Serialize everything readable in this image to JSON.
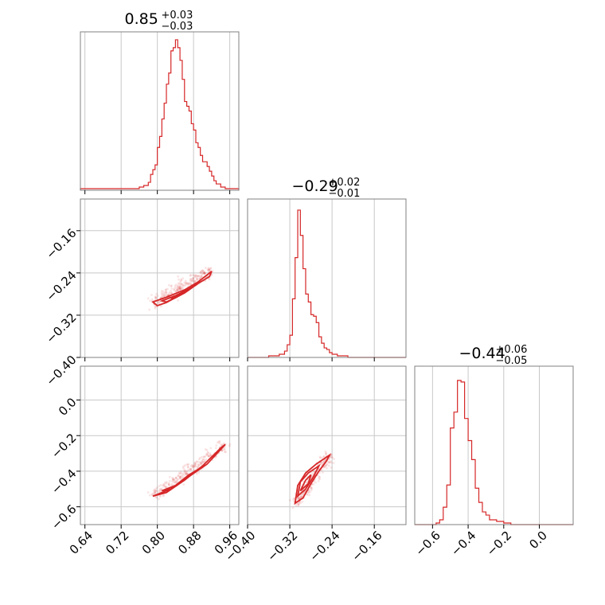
{
  "chart_data": {
    "type": "corner",
    "line_color": "#d62728",
    "grid": true,
    "parameters": [
      {
        "median": "0.85",
        "err_plus": "+0.03",
        "err_minus": "−0.03",
        "range": [
          0.63,
          0.98
        ],
        "ticks": [
          0.64,
          0.72,
          0.8,
          0.88,
          0.96
        ],
        "tick_labels": [
          "0.64",
          "0.72",
          "0.80",
          "0.88",
          "0.96"
        ],
        "hist": {
          "edges": [
            0.63,
            0.64,
            0.65,
            0.66,
            0.67,
            0.68,
            0.69,
            0.7,
            0.71,
            0.72,
            0.73,
            0.74,
            0.75,
            0.76,
            0.77,
            0.78,
            0.785,
            0.79,
            0.795,
            0.8,
            0.805,
            0.81,
            0.815,
            0.82,
            0.825,
            0.83,
            0.835,
            0.84,
            0.845,
            0.85,
            0.855,
            0.86,
            0.865,
            0.87,
            0.875,
            0.88,
            0.885,
            0.89,
            0.895,
            0.9,
            0.905,
            0.91,
            0.915,
            0.92,
            0.925,
            0.93,
            0.94,
            0.95,
            0.96,
            0.97,
            0.98
          ],
          "counts": [
            0.01,
            0.01,
            0.01,
            0.01,
            0.01,
            0.01,
            0.01,
            0.01,
            0.01,
            0.01,
            0.01,
            0.01,
            0.01,
            0.02,
            0.03,
            0.05,
            0.1,
            0.13,
            0.16,
            0.27,
            0.34,
            0.45,
            0.55,
            0.67,
            0.74,
            0.88,
            0.9,
            0.95,
            0.9,
            0.82,
            0.7,
            0.56,
            0.53,
            0.5,
            0.42,
            0.38,
            0.3,
            0.27,
            0.22,
            0.18,
            0.18,
            0.15,
            0.12,
            0.09,
            0.06,
            0.04,
            0.02,
            0.01,
            0.01,
            0.01
          ]
        }
      },
      {
        "median": "−0.29",
        "err_plus": "+0.02",
        "err_minus": "−0.01",
        "range": [
          -0.4,
          -0.1
        ],
        "ticks": [
          -0.4,
          -0.32,
          -0.24,
          -0.16
        ],
        "tick_labels": [
          "−0.40",
          "−0.32",
          "−0.24",
          "−0.16"
        ],
        "hist": {
          "edges": [
            -0.4,
            -0.39,
            -0.38,
            -0.37,
            -0.36,
            -0.35,
            -0.345,
            -0.34,
            -0.335,
            -0.33,
            -0.325,
            -0.32,
            -0.315,
            -0.31,
            -0.305,
            -0.3,
            -0.295,
            -0.29,
            -0.285,
            -0.28,
            -0.275,
            -0.27,
            -0.265,
            -0.26,
            -0.255,
            -0.25,
            -0.245,
            -0.24,
            -0.235,
            -0.23,
            -0.22,
            -0.21,
            -0.2,
            -0.19,
            -0.18,
            -0.17,
            -0.16,
            -0.15,
            -0.14,
            -0.13,
            -0.12,
            -0.11,
            -0.1
          ],
          "counts": [
            0.0,
            0.0,
            0.0,
            0.0,
            0.01,
            0.01,
            0.01,
            0.02,
            0.02,
            0.04,
            0.08,
            0.14,
            0.37,
            0.63,
            0.93,
            0.77,
            0.56,
            0.4,
            0.35,
            0.27,
            0.26,
            0.22,
            0.13,
            0.09,
            0.06,
            0.05,
            0.03,
            0.02,
            0.02,
            0.01,
            0.01,
            0.0,
            0.0,
            0.0,
            0.0,
            0.0,
            0.0,
            0.0,
            0.0,
            0.0,
            0.0,
            0.0
          ]
        }
      },
      {
        "median": "−0.44",
        "err_plus": "+0.06",
        "err_minus": "−0.05",
        "range": [
          -0.7,
          0.19
        ],
        "ticks": [
          -0.6,
          -0.4,
          -0.2,
          0.0
        ],
        "tick_labels": [
          "−0.6",
          "−0.4",
          "−0.2",
          "0.0"
        ],
        "hist": {
          "edges": [
            -0.7,
            -0.68,
            -0.66,
            -0.64,
            -0.62,
            -0.6,
            -0.58,
            -0.56,
            -0.54,
            -0.52,
            -0.5,
            -0.48,
            -0.46,
            -0.44,
            -0.42,
            -0.4,
            -0.38,
            -0.36,
            -0.34,
            -0.32,
            -0.3,
            -0.28,
            -0.26,
            -0.24,
            -0.22,
            -0.2,
            -0.18,
            -0.16,
            -0.14,
            -0.12,
            -0.1,
            -0.08,
            -0.06,
            -0.04,
            -0.02,
            0.0,
            0.02,
            0.04,
            0.06,
            0.08,
            0.1,
            0.12,
            0.14,
            0.16,
            0.19
          ],
          "counts": [
            0.0,
            0.0,
            0.0,
            0.0,
            0.0,
            0.0,
            0.01,
            0.03,
            0.11,
            0.25,
            0.61,
            0.71,
            0.91,
            0.9,
            0.67,
            0.53,
            0.41,
            0.23,
            0.14,
            0.08,
            0.06,
            0.03,
            0.03,
            0.02,
            0.02,
            0.01,
            0.01,
            0.0,
            0.0,
            0.0,
            0.0,
            0.0,
            0.0,
            0.0,
            0.0,
            0.0,
            0.0,
            0.0,
            0.0,
            0.0,
            0.0,
            0.0,
            0.0,
            0.0
          ]
        }
      }
    ],
    "pairs": [
      {
        "x": 0,
        "y": 1,
        "contours": [
          [
            [
              0.79,
              -0.295
            ],
            [
              0.82,
              -0.286
            ],
            [
              0.86,
              -0.272
            ],
            [
              0.89,
              -0.257
            ],
            [
              0.92,
              -0.237
            ],
            [
              0.915,
              -0.247
            ],
            [
              0.88,
              -0.265
            ],
            [
              0.85,
              -0.282
            ],
            [
              0.82,
              -0.296
            ],
            [
              0.8,
              -0.302
            ],
            [
              0.79,
              -0.295
            ]
          ],
          [
            [
              0.81,
              -0.293
            ],
            [
              0.84,
              -0.283
            ],
            [
              0.87,
              -0.27
            ],
            [
              0.89,
              -0.26
            ],
            [
              0.87,
              -0.272
            ],
            [
              0.84,
              -0.287
            ],
            [
              0.82,
              -0.295
            ],
            [
              0.81,
              -0.293
            ]
          ],
          [
            [
              0.83,
              -0.288
            ],
            [
              0.85,
              -0.28
            ],
            [
              0.87,
              -0.272
            ],
            [
              0.86,
              -0.278
            ],
            [
              0.84,
              -0.287
            ],
            [
              0.83,
              -0.288
            ]
          ]
        ]
      },
      {
        "x": 0,
        "y": 2,
        "contours": [
          [
            [
              0.79,
              -0.54
            ],
            [
              0.83,
              -0.5
            ],
            [
              0.87,
              -0.43
            ],
            [
              0.91,
              -0.36
            ],
            [
              0.95,
              -0.25
            ],
            [
              0.94,
              -0.27
            ],
            [
              0.9,
              -0.37
            ],
            [
              0.86,
              -0.45
            ],
            [
              0.82,
              -0.52
            ],
            [
              0.79,
              -0.54
            ]
          ],
          [
            [
              0.81,
              -0.51
            ],
            [
              0.84,
              -0.48
            ],
            [
              0.87,
              -0.42
            ],
            [
              0.89,
              -0.39
            ],
            [
              0.86,
              -0.45
            ],
            [
              0.83,
              -0.5
            ],
            [
              0.81,
              -0.51
            ]
          ]
        ]
      },
      {
        "x": 1,
        "y": 2,
        "contours": [
          [
            [
              -0.31,
              -0.58
            ],
            [
              -0.305,
              -0.48
            ],
            [
              -0.29,
              -0.41
            ],
            [
              -0.27,
              -0.36
            ],
            [
              -0.245,
              -0.31
            ],
            [
              -0.25,
              -0.34
            ],
            [
              -0.265,
              -0.4
            ],
            [
              -0.28,
              -0.47
            ],
            [
              -0.295,
              -0.55
            ],
            [
              -0.31,
              -0.58
            ]
          ],
          [
            [
              -0.305,
              -0.54
            ],
            [
              -0.3,
              -0.46
            ],
            [
              -0.285,
              -0.41
            ],
            [
              -0.265,
              -0.37
            ],
            [
              -0.275,
              -0.43
            ],
            [
              -0.29,
              -0.5
            ],
            [
              -0.305,
              -0.54
            ]
          ],
          [
            [
              -0.3,
              -0.51
            ],
            [
              -0.29,
              -0.45
            ],
            [
              -0.28,
              -0.42
            ],
            [
              -0.285,
              -0.47
            ],
            [
              -0.3,
              -0.51
            ]
          ]
        ]
      }
    ]
  }
}
